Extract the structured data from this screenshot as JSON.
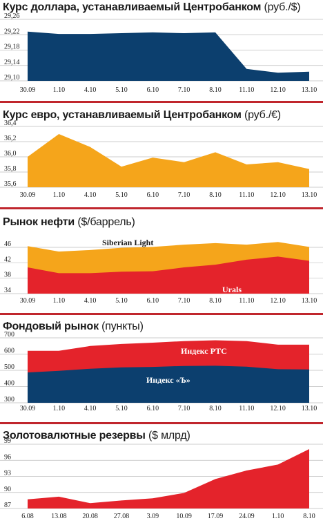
{
  "colors": {
    "navy": "#0c3f6e",
    "orange": "#f5a51b",
    "red": "#e4232b",
    "rule_red": "#c0262d"
  },
  "chart_data": [
    {
      "type": "area",
      "title_bold": "Курс доллара, устанавливаемый Центробанком",
      "title_unit": "(руб./$)",
      "categories": [
        "30.09",
        "1.10",
        "4.10",
        "5.10",
        "6.10",
        "7.10",
        "8.10",
        "11.10",
        "12.10",
        "13.10"
      ],
      "ylim": [
        29.1,
        29.26
      ],
      "yticks": [
        "29,10",
        "29,14",
        "29,18",
        "29,22",
        "29,26"
      ],
      "ytick_values": [
        29.1,
        29.14,
        29.18,
        29.22,
        29.26
      ],
      "series": [
        {
          "values": [
            29.228,
            29.222,
            29.222,
            29.224,
            29.226,
            29.224,
            29.226,
            29.131,
            29.121,
            29.124
          ],
          "color": "#0c3f6e"
        }
      ]
    },
    {
      "type": "area",
      "title_bold": "Курс евро, устанавливаемый Центробанком",
      "title_unit": "(руб./€)",
      "categories": [
        "30.09",
        "1.10",
        "4.10",
        "5.10",
        "6.10",
        "7.10",
        "8.10",
        "11.10",
        "12.10",
        "13.10"
      ],
      "ylim": [
        35.6,
        36.4
      ],
      "yticks": [
        "35,6",
        "35,8",
        "36,0",
        "36,2",
        "36,4"
      ],
      "ytick_values": [
        35.6,
        35.8,
        36.0,
        36.2,
        36.4
      ],
      "series": [
        {
          "values": [
            36.0,
            36.3,
            36.13,
            35.87,
            35.99,
            35.93,
            36.06,
            35.9,
            35.93,
            35.84
          ],
          "color": "#f5a51b"
        }
      ]
    },
    {
      "type": "area",
      "title_bold": "Рынок нефти",
      "title_unit": "($/баррель)",
      "categories": [
        "30.09",
        "1.10",
        "4.10",
        "5.10",
        "6.10",
        "7.10",
        "8.10",
        "11.10",
        "12.10",
        "13.10"
      ],
      "ylim": [
        34,
        46
      ],
      "yticks": [
        "34",
        "38",
        "42",
        "46"
      ],
      "ytick_values": [
        34,
        38,
        42,
        46
      ],
      "series": [
        {
          "name": "Siberian Light",
          "values": [
            46.3,
            44.9,
            45.3,
            45.9,
            46.1,
            46.7,
            47.1,
            46.7,
            47.4,
            46.1
          ],
          "color": "#f5a51b"
        },
        {
          "name": "Urals",
          "values": [
            40.8,
            39.3,
            39.3,
            39.7,
            39.8,
            40.8,
            41.5,
            42.8,
            43.6,
            42.5
          ],
          "color": "#e4232b"
        }
      ]
    },
    {
      "type": "area",
      "title_bold": "Фондовый рынок",
      "title_unit": "(пункты)",
      "categories": [
        "30.09",
        "1.10",
        "4.10",
        "5.10",
        "6.10",
        "7.10",
        "8.10",
        "11.10",
        "12.10",
        "13.10"
      ],
      "ylim": [
        300,
        700
      ],
      "yticks": [
        "300",
        "400",
        "500",
        "600",
        "700"
      ],
      "ytick_values": [
        300,
        400,
        500,
        600,
        700
      ],
      "series": [
        {
          "name": "Индекс РТС",
          "values": [
            620,
            620,
            650,
            662,
            670,
            680,
            685,
            680,
            658,
            658
          ],
          "color": "#e4232b"
        },
        {
          "name": "Индекс «Ъ»",
          "values": [
            487,
            497,
            510,
            518,
            521,
            527,
            528,
            522,
            507,
            505
          ],
          "color": "#0c3f6e"
        }
      ]
    },
    {
      "type": "area",
      "title_bold": "Золотовалютные резервы",
      "title_unit": "($ млрд)",
      "categories": [
        "6.08",
        "13.08",
        "20.08",
        "27.08",
        "3.09",
        "10.09",
        "17.09",
        "24.09",
        "1.10",
        "8.10"
      ],
      "ylim": [
        87,
        99
      ],
      "yticks": [
        "87",
        "90",
        "93",
        "96",
        "99"
      ],
      "ytick_values": [
        87,
        90,
        93,
        96,
        99
      ],
      "series": [
        {
          "values": [
            88.7,
            89.2,
            88.0,
            88.5,
            88.9,
            89.9,
            92.5,
            94.1,
            95.2,
            98.1
          ],
          "color": "#e4232b"
        }
      ]
    }
  ]
}
